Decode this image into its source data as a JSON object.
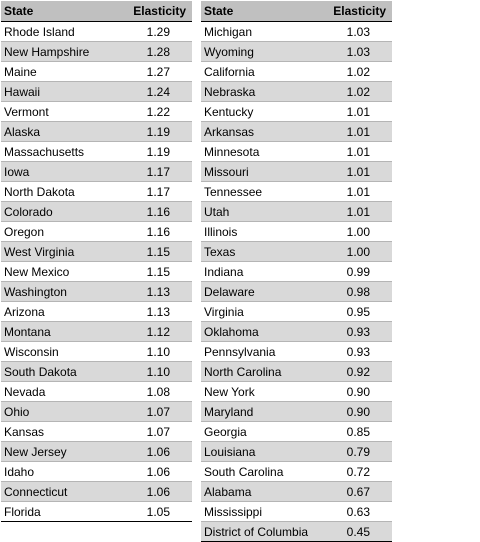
{
  "headers": {
    "state": "State",
    "elasticity": "Elasticity"
  },
  "left": [
    [
      "Rhode Island",
      "1.29"
    ],
    [
      "New Hampshire",
      "1.28"
    ],
    [
      "Maine",
      "1.27"
    ],
    [
      "Hawaii",
      "1.24"
    ],
    [
      "Vermont",
      "1.22"
    ],
    [
      "Alaska",
      "1.19"
    ],
    [
      "Massachusetts",
      "1.19"
    ],
    [
      "Iowa",
      "1.17"
    ],
    [
      "North Dakota",
      "1.17"
    ],
    [
      "Colorado",
      "1.16"
    ],
    [
      "Oregon",
      "1.16"
    ],
    [
      "West Virginia",
      "1.15"
    ],
    [
      "New Mexico",
      "1.15"
    ],
    [
      "Washington",
      "1.13"
    ],
    [
      "Arizona",
      "1.13"
    ],
    [
      "Montana",
      "1.12"
    ],
    [
      "Wisconsin",
      "1.10"
    ],
    [
      "South Dakota",
      "1.10"
    ],
    [
      "Nevada",
      "1.08"
    ],
    [
      "Ohio",
      "1.07"
    ],
    [
      "Kansas",
      "1.07"
    ],
    [
      "New Jersey",
      "1.06"
    ],
    [
      "Idaho",
      "1.06"
    ],
    [
      "Connecticut",
      "1.06"
    ],
    [
      "Florida",
      "1.05"
    ]
  ],
  "right": [
    [
      "Michigan",
      "1.03"
    ],
    [
      "Wyoming",
      "1.03"
    ],
    [
      "California",
      "1.02"
    ],
    [
      "Nebraska",
      "1.02"
    ],
    [
      "Kentucky",
      "1.01"
    ],
    [
      "Arkansas",
      "1.01"
    ],
    [
      "Minnesota",
      "1.01"
    ],
    [
      "Missouri",
      "1.01"
    ],
    [
      "Tennessee",
      "1.01"
    ],
    [
      "Utah",
      "1.01"
    ],
    [
      "Illinois",
      "1.00"
    ],
    [
      "Texas",
      "1.00"
    ],
    [
      "Indiana",
      "0.99"
    ],
    [
      "Delaware",
      "0.98"
    ],
    [
      "Virginia",
      "0.95"
    ],
    [
      "Oklahoma",
      "0.93"
    ],
    [
      "Pennsylvania",
      "0.93"
    ],
    [
      "North Carolina",
      "0.92"
    ],
    [
      "New York",
      "0.90"
    ],
    [
      "Maryland",
      "0.90"
    ],
    [
      "Georgia",
      "0.85"
    ],
    [
      "Louisiana",
      "0.79"
    ],
    [
      "South Carolina",
      "0.72"
    ],
    [
      "Alabama",
      "0.67"
    ],
    [
      "Mississippi",
      "0.63"
    ],
    [
      "District of Columbia",
      "0.45"
    ]
  ],
  "colors": {
    "header_bg": "#c0c0c0",
    "alt_row_bg": "#d9d9d9",
    "row_rule": "#b5b5b5"
  }
}
